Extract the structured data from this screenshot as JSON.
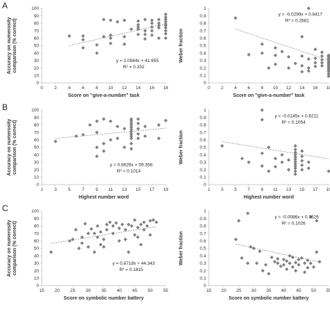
{
  "panel_letters": [
    "A",
    "B",
    "C"
  ],
  "style": {
    "marker_color": "#7f7f7f",
    "trend_color": "#8c8c8c",
    "axis_color": "#bdbdbd"
  },
  "chart_data": [
    {
      "panel": "A",
      "type": "scatter",
      "xlabel": "Score on \"give-a-number\" task",
      "ylabel": "Accuracy on numerosity comparison (% correct)",
      "xlim": [
        0,
        18
      ],
      "xticks": [
        0,
        2,
        4,
        6,
        8,
        10,
        12,
        14,
        16,
        18
      ],
      "ylim": [
        0,
        100
      ],
      "yticks": [
        0,
        10,
        20,
        30,
        40,
        50,
        60,
        70,
        80,
        90,
        100
      ],
      "trend": {
        "slope": 2.0584,
        "intercept": 41.955
      },
      "equation": "y = 2.0584x + 41.955",
      "r2": "R² = 0.332",
      "points": [
        [
          4,
          63
        ],
        [
          6,
          47
        ],
        [
          6,
          58
        ],
        [
          6,
          63
        ],
        [
          8,
          40
        ],
        [
          8,
          51
        ],
        [
          9,
          85
        ],
        [
          9,
          62
        ],
        [
          10,
          64
        ],
        [
          10,
          60
        ],
        [
          10,
          53
        ],
        [
          10,
          84
        ],
        [
          11,
          82
        ],
        [
          12,
          84
        ],
        [
          12,
          62
        ],
        [
          12,
          52
        ],
        [
          13,
          72
        ],
        [
          14,
          83
        ],
        [
          14,
          65
        ],
        [
          14,
          72
        ],
        [
          14,
          75
        ],
        [
          14,
          78
        ],
        [
          15,
          85
        ],
        [
          15,
          70
        ],
        [
          15,
          59
        ],
        [
          15,
          65
        ],
        [
          16,
          75
        ],
        [
          16,
          80
        ],
        [
          16,
          70
        ],
        [
          16,
          64
        ],
        [
          16,
          84
        ],
        [
          17,
          85
        ],
        [
          17,
          80
        ],
        [
          17,
          77
        ],
        [
          17,
          74
        ],
        [
          17,
          60
        ],
        [
          18,
          92
        ],
        [
          18,
          88
        ],
        [
          18,
          85
        ],
        [
          18,
          82
        ],
        [
          18,
          79
        ],
        [
          18,
          77
        ],
        [
          18,
          74
        ],
        [
          18,
          70
        ],
        [
          18,
          66
        ],
        [
          18,
          60
        ]
      ]
    },
    {
      "panel": "A",
      "type": "scatter",
      "xlabel": "Score on \"give-a-number\" task",
      "ylabel": "Weber fraction",
      "xlim": [
        0,
        18
      ],
      "xticks": [
        0,
        2,
        4,
        6,
        8,
        10,
        12,
        14,
        16,
        18
      ],
      "ylim": [
        0,
        1
      ],
      "yticks": [
        0,
        0.1,
        0.2,
        0.3,
        0.4,
        0.5,
        0.6,
        0.7,
        0.8,
        0.9,
        1
      ],
      "trend": {
        "slope": -0.0299,
        "intercept": 0.8417
      },
      "equation": "y = -0.0299x + 0.8417",
      "r2": "R² = 0.2681",
      "points": [
        [
          4,
          0.87
        ],
        [
          6,
          0.38
        ],
        [
          8,
          0.4
        ],
        [
          8,
          0.52
        ],
        [
          9,
          0.2
        ],
        [
          10,
          0.47
        ],
        [
          10,
          0.37
        ],
        [
          10,
          0.25
        ],
        [
          11,
          0.42
        ],
        [
          12,
          0.35
        ],
        [
          12,
          0.2
        ],
        [
          13,
          0.26
        ],
        [
          14,
          0.62
        ],
        [
          14,
          0.36
        ],
        [
          14,
          0.23
        ],
        [
          14,
          0.15
        ],
        [
          15,
          1.0
        ],
        [
          15,
          0.32
        ],
        [
          15,
          0.2
        ],
        [
          15,
          0.16
        ],
        [
          16,
          0.45
        ],
        [
          16,
          0.33
        ],
        [
          16,
          0.27
        ],
        [
          16,
          0.22
        ],
        [
          17,
          0.41
        ],
        [
          17,
          0.36
        ],
        [
          17,
          0.31
        ],
        [
          17,
          0.27
        ],
        [
          17,
          0.23
        ],
        [
          18,
          0.37
        ],
        [
          18,
          0.35
        ],
        [
          18,
          0.33
        ],
        [
          18,
          0.31
        ],
        [
          18,
          0.29
        ],
        [
          18,
          0.27
        ],
        [
          18,
          0.25
        ],
        [
          18,
          0.23
        ],
        [
          18,
          0.21
        ],
        [
          18,
          0.19
        ],
        [
          18,
          0.17
        ],
        [
          18,
          0.15
        ],
        [
          18,
          0.12
        ],
        [
          18,
          0.09
        ]
      ]
    },
    {
      "panel": "B",
      "type": "scatter",
      "xlabel": "Highest number word",
      "ylabel": "Accuracy on numerosity comparison (% correct)",
      "xlim": [
        1,
        19
      ],
      "xticks": [
        1,
        3,
        5,
        7,
        9,
        11,
        13,
        15,
        17,
        19
      ],
      "ylim": [
        0,
        100
      ],
      "yticks": [
        0,
        10,
        20,
        30,
        40,
        50,
        60,
        70,
        80,
        90,
        100
      ],
      "trend": {
        "slope": 0.8626,
        "intercept": 59.358
      },
      "equation": "y = 0.8626x + 59.358",
      "r2": "R² = 0.1014",
      "points": [
        [
          3,
          58
        ],
        [
          6,
          65
        ],
        [
          7,
          67
        ],
        [
          8,
          80
        ],
        [
          9,
          50
        ],
        [
          9,
          38
        ],
        [
          9,
          85
        ],
        [
          9,
          70
        ],
        [
          10,
          88
        ],
        [
          10,
          55
        ],
        [
          10,
          45
        ],
        [
          11,
          85
        ],
        [
          11,
          60
        ],
        [
          12,
          62
        ],
        [
          12,
          78
        ],
        [
          13,
          75
        ],
        [
          13,
          50
        ],
        [
          14,
          88
        ],
        [
          14,
          86
        ],
        [
          14,
          83
        ],
        [
          14,
          80
        ],
        [
          14,
          77
        ],
        [
          14,
          74
        ],
        [
          14,
          71
        ],
        [
          14,
          68
        ],
        [
          14,
          65
        ],
        [
          14,
          62
        ],
        [
          14,
          55
        ],
        [
          14,
          48
        ],
        [
          15,
          88
        ],
        [
          15,
          82
        ],
        [
          15,
          75
        ],
        [
          15,
          68
        ],
        [
          15,
          62
        ],
        [
          16,
          65
        ],
        [
          16,
          78
        ],
        [
          18,
          80
        ],
        [
          18,
          62
        ],
        [
          19,
          86
        ]
      ]
    },
    {
      "panel": "B",
      "type": "scatter",
      "xlabel": "Highest number word",
      "ylabel": "Weber fraction",
      "xlim": [
        1,
        19
      ],
      "xticks": [
        1,
        3,
        5,
        7,
        9,
        11,
        13,
        15,
        17,
        19
      ],
      "ylim": [
        0,
        1
      ],
      "yticks": [
        0,
        0.1,
        0.2,
        0.3,
        0.4,
        0.5,
        0.6,
        0.7,
        0.8,
        0.9,
        1
      ],
      "trend": {
        "slope": -0.0145,
        "intercept": 0.6211
      },
      "equation": "y = -0.0145x + 0.6211",
      "r2": "R² = 0.1054",
      "points": [
        [
          3,
          0.52
        ],
        [
          6,
          0.35
        ],
        [
          7,
          0.3
        ],
        [
          9,
          1.0
        ],
        [
          9,
          0.87
        ],
        [
          9,
          0.42
        ],
        [
          9,
          0.25
        ],
        [
          10,
          0.5
        ],
        [
          10,
          0.18
        ],
        [
          11,
          0.35
        ],
        [
          11,
          0.24
        ],
        [
          12,
          0.4
        ],
        [
          12,
          0.3
        ],
        [
          13,
          0.2
        ],
        [
          13,
          0.33
        ],
        [
          14,
          0.52
        ],
        [
          14,
          0.47
        ],
        [
          14,
          0.43
        ],
        [
          14,
          0.4
        ],
        [
          14,
          0.37
        ],
        [
          14,
          0.34
        ],
        [
          14,
          0.31
        ],
        [
          14,
          0.28
        ],
        [
          14,
          0.25
        ],
        [
          14,
          0.22
        ],
        [
          14,
          0.18
        ],
        [
          14,
          0.14
        ],
        [
          15,
          0.45
        ],
        [
          15,
          0.38
        ],
        [
          15,
          0.32
        ],
        [
          15,
          0.26
        ],
        [
          15,
          0.2
        ],
        [
          16,
          0.3
        ],
        [
          16,
          0.22
        ],
        [
          19,
          0.18
        ]
      ]
    },
    {
      "panel": "C",
      "type": "scatter",
      "xlabel": "Score on symbolic number battery",
      "ylabel": "Accuracy on numerosity comparison (% correct)",
      "xlim": [
        15,
        55
      ],
      "xticks": [
        15,
        20,
        25,
        30,
        35,
        40,
        45,
        50,
        55
      ],
      "ylim": [
        0,
        100
      ],
      "yticks": [
        0,
        10,
        20,
        30,
        40,
        50,
        60,
        70,
        80,
        90,
        100
      ],
      "trend": {
        "slope": 0.6718,
        "intercept": 44.343
      },
      "equation": "y = 0.6718x + 44.343",
      "r2": "R² = 0.1815",
      "points": [
        [
          18,
          45
        ],
        [
          24,
          60
        ],
        [
          25,
          62
        ],
        [
          26,
          75
        ],
        [
          27,
          50
        ],
        [
          28,
          65
        ],
        [
          28,
          57
        ],
        [
          29,
          83
        ],
        [
          30,
          70
        ],
        [
          30,
          52
        ],
        [
          31,
          76
        ],
        [
          32,
          70
        ],
        [
          32,
          45
        ],
        [
          33,
          80
        ],
        [
          33,
          65
        ],
        [
          34,
          55
        ],
        [
          34,
          72
        ],
        [
          35,
          52
        ],
        [
          35,
          62
        ],
        [
          36,
          82
        ],
        [
          36,
          75
        ],
        [
          37,
          85
        ],
        [
          38,
          80
        ],
        [
          38,
          70
        ],
        [
          39,
          84
        ],
        [
          40,
          77
        ],
        [
          40,
          60
        ],
        [
          41,
          82
        ],
        [
          42,
          75
        ],
        [
          42,
          62
        ],
        [
          43,
          45
        ],
        [
          43,
          82
        ],
        [
          44,
          80
        ],
        [
          45,
          68
        ],
        [
          45,
          88
        ],
        [
          46,
          78
        ],
        [
          46,
          65
        ],
        [
          47,
          82
        ],
        [
          47,
          55
        ],
        [
          48,
          85
        ],
        [
          48,
          75
        ],
        [
          49,
          80
        ],
        [
          50,
          87
        ],
        [
          50,
          68
        ],
        [
          51,
          88
        ],
        [
          52,
          85
        ]
      ]
    },
    {
      "panel": "C",
      "type": "scatter",
      "xlabel": "Score on symbolic number battery",
      "ylabel": "Weber fraction",
      "xlim": [
        15,
        55
      ],
      "xticks": [
        15,
        20,
        25,
        30,
        35,
        40,
        45,
        50,
        55
      ],
      "ylim": [
        0,
        1
      ],
      "yticks": [
        0,
        0.1,
        0.2,
        0.3,
        0.4,
        0.5,
        0.6,
        0.7,
        0.8,
        0.9,
        1
      ],
      "trend": {
        "slope": -0.0086,
        "intercept": 0.7626
      },
      "equation": "y = -0.0086x + 0.7626",
      "r2": "R² = 0.1026",
      "points": [
        [
          24,
          0.62
        ],
        [
          25,
          0.87
        ],
        [
          26,
          0.37
        ],
        [
          28,
          0.3
        ],
        [
          28,
          0.97
        ],
        [
          29,
          0.52
        ],
        [
          30,
          0.5
        ],
        [
          31,
          0.3
        ],
        [
          32,
          0.46
        ],
        [
          33,
          0.2
        ],
        [
          34,
          0.28
        ],
        [
          35,
          0.16
        ],
        [
          36,
          0.38
        ],
        [
          37,
          0.32
        ],
        [
          38,
          0.3
        ],
        [
          38,
          0.36
        ],
        [
          39,
          0.26
        ],
        [
          40,
          0.35
        ],
        [
          40,
          0.28
        ],
        [
          41,
          0.33
        ],
        [
          41,
          0.22
        ],
        [
          42,
          0.4
        ],
        [
          42,
          0.3
        ],
        [
          43,
          0.38
        ],
        [
          43,
          0.25
        ],
        [
          44,
          0.31
        ],
        [
          44,
          0.2
        ],
        [
          45,
          0.35
        ],
        [
          45,
          0.28
        ],
        [
          46,
          0.37
        ],
        [
          47,
          0.3
        ],
        [
          47,
          0.18
        ],
        [
          48,
          0.34
        ],
        [
          48,
          0.24
        ],
        [
          49,
          0.92
        ],
        [
          49,
          0.3
        ],
        [
          50,
          0.25
        ],
        [
          51,
          0.87
        ],
        [
          51,
          0.45
        ],
        [
          52,
          0.32
        ]
      ]
    }
  ]
}
